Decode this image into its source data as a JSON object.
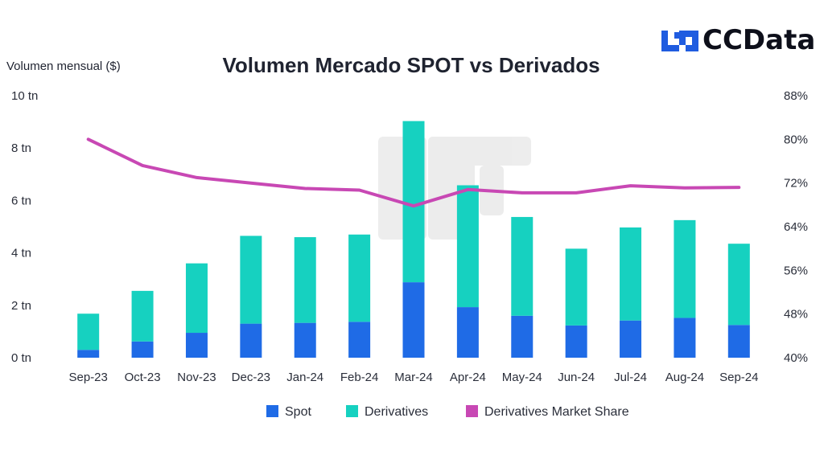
{
  "brand": {
    "name": "CCData",
    "logo_icon": "ccdata-logo-icon",
    "accent": "#1f5ce0"
  },
  "chart_data": {
    "type": "bar",
    "title": "Volumen Mercado SPOT vs Derivados",
    "ylabel": "Volumen mensual ($)",
    "xlabel": "",
    "ylim": [
      0,
      10
    ],
    "y_ticks": [
      0,
      2,
      4,
      6,
      8,
      10
    ],
    "y_tick_labels": [
      "0 tn",
      "2 tn",
      "4 tn",
      "6 tn",
      "8 tn",
      "10 tn"
    ],
    "y2lim": [
      40,
      88
    ],
    "y2_ticks": [
      40,
      48,
      56,
      64,
      72,
      80,
      88
    ],
    "y2_tick_labels": [
      "40%",
      "48%",
      "56%",
      "64%",
      "72%",
      "80%",
      "88%"
    ],
    "stacked": true,
    "grid": false,
    "legend_position": "bottom",
    "categories": [
      "Sep-23",
      "Oct-23",
      "Nov-23",
      "Dec-23",
      "Jan-24",
      "Feb-24",
      "Mar-24",
      "Apr-24",
      "May-24",
      "Jun-24",
      "Jul-24",
      "Aug-24",
      "Sep-24"
    ],
    "series": [
      {
        "name": "Spot",
        "type": "bar",
        "axis": "left",
        "color": "#1f6be6",
        "values": [
          0.3,
          0.62,
          0.95,
          1.3,
          1.33,
          1.37,
          2.88,
          1.93,
          1.6,
          1.23,
          1.42,
          1.52,
          1.25
        ]
      },
      {
        "name": "Derivatives",
        "type": "bar",
        "axis": "left",
        "color": "#16d1c0",
        "values": [
          1.38,
          1.93,
          2.65,
          3.35,
          3.27,
          3.33,
          6.15,
          4.65,
          3.77,
          2.93,
          3.55,
          3.73,
          3.1
        ]
      },
      {
        "name": "Derivatives Market Share",
        "type": "line",
        "axis": "right",
        "color": "#c848b4",
        "values": [
          80,
          75.2,
          73,
          72,
          71,
          70.7,
          67.8,
          70.8,
          70.2,
          70.2,
          71.5,
          71.1,
          71.2
        ]
      }
    ]
  }
}
